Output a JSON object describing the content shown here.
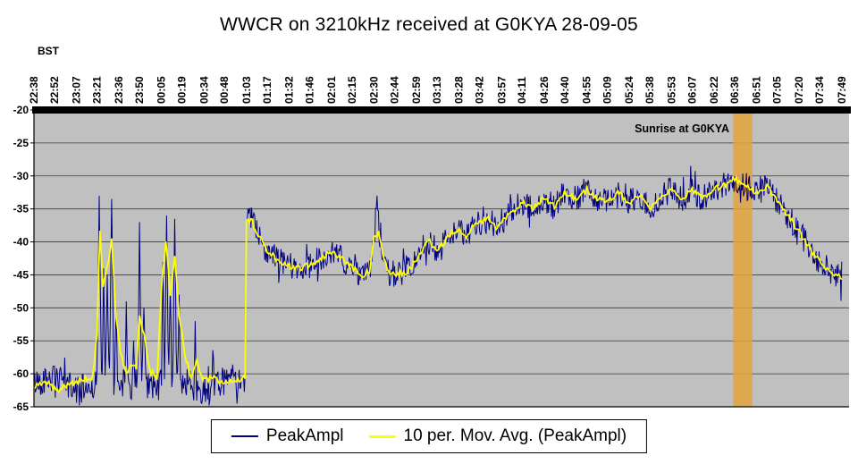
{
  "chart_data": {
    "type": "line",
    "title": "WWCR on 3210kHz received at G0KYA 28-09-05",
    "x_axis_label": "BST",
    "x_ticks": [
      "22:38",
      "22:52",
      "23:07",
      "23:21",
      "23:36",
      "23:50",
      "00:05",
      "00:19",
      "00:34",
      "00:48",
      "01:03",
      "01:17",
      "01:32",
      "01:46",
      "02:01",
      "02:15",
      "02:30",
      "02:44",
      "02:59",
      "03:13",
      "03:28",
      "03:42",
      "03:57",
      "04:11",
      "04:26",
      "04:40",
      "04:55",
      "05:09",
      "05:24",
      "05:38",
      "05:53",
      "06:07",
      "06:22",
      "06:36",
      "06:51",
      "07:05",
      "07:20",
      "07:34",
      "07:49"
    ],
    "y_ticks": [
      -20,
      -25,
      -30,
      -35,
      -40,
      -45,
      -50,
      -55,
      -60,
      -65
    ],
    "y_range": [
      -65,
      -20
    ],
    "x_range_minutes": [
      0,
      556
    ],
    "gridlines": true,
    "plot_bg": "#C0C0C0",
    "grid_color": "#3a3a3a",
    "annotation": {
      "label": "Sunrise at G0KYA",
      "band_start_min": 477,
      "band_end_min": 490,
      "band_color": "#E2A33C"
    },
    "series": [
      {
        "name": "PeakAmpl",
        "color": "#000080"
      },
      {
        "name": "10 per. Mov. Avg. (PeakAmpl)",
        "color": "#FFFF00"
      }
    ],
    "moving_avg_points": [
      [
        0,
        -62
      ],
      [
        8,
        -61
      ],
      [
        16,
        -62.5
      ],
      [
        24,
        -61.5
      ],
      [
        32,
        -61
      ],
      [
        40,
        -60.5
      ],
      [
        43,
        -54
      ],
      [
        45,
        -38
      ],
      [
        47,
        -47
      ],
      [
        50,
        -44
      ],
      [
        53,
        -39.5
      ],
      [
        56,
        -51
      ],
      [
        59,
        -57
      ],
      [
        63,
        -60
      ],
      [
        66,
        -58.5
      ],
      [
        70,
        -59
      ],
      [
        72,
        -51
      ],
      [
        75,
        -54
      ],
      [
        79,
        -59.5
      ],
      [
        84,
        -60.5
      ],
      [
        87,
        -47
      ],
      [
        90,
        -40
      ],
      [
        93,
        -48
      ],
      [
        96,
        -42.5
      ],
      [
        99,
        -51
      ],
      [
        103,
        -57
      ],
      [
        107,
        -60.5
      ],
      [
        111,
        -58
      ],
      [
        115,
        -61
      ],
      [
        122,
        -60.5
      ],
      [
        130,
        -61.5
      ],
      [
        138,
        -61
      ],
      [
        144,
        -60.5
      ],
      [
        145,
        -37
      ],
      [
        148,
        -36.5
      ],
      [
        152,
        -38.5
      ],
      [
        158,
        -41
      ],
      [
        165,
        -42.5
      ],
      [
        172,
        -43.5
      ],
      [
        180,
        -44
      ],
      [
        188,
        -43.5
      ],
      [
        196,
        -42.5
      ],
      [
        203,
        -41.5
      ],
      [
        210,
        -42.5
      ],
      [
        217,
        -44
      ],
      [
        224,
        -45
      ],
      [
        229,
        -44.5
      ],
      [
        232,
        -39.5
      ],
      [
        235,
        -38.5
      ],
      [
        238,
        -42
      ],
      [
        242,
        -44.5
      ],
      [
        248,
        -45
      ],
      [
        254,
        -44.5
      ],
      [
        261,
        -43
      ],
      [
        266,
        -40.5
      ],
      [
        270,
        -40
      ],
      [
        275,
        -41.5
      ],
      [
        280,
        -40
      ],
      [
        285,
        -38.5
      ],
      [
        290,
        -38
      ],
      [
        295,
        -39.5
      ],
      [
        300,
        -37.5
      ],
      [
        304,
        -37
      ],
      [
        310,
        -36.5
      ],
      [
        315,
        -38
      ],
      [
        319,
        -37
      ],
      [
        326,
        -35.5
      ],
      [
        333,
        -34
      ],
      [
        340,
        -35
      ],
      [
        348,
        -33.5
      ],
      [
        355,
        -34.5
      ],
      [
        362,
        -32.5
      ],
      [
        370,
        -33.5
      ],
      [
        377,
        -32
      ],
      [
        384,
        -33.5
      ],
      [
        391,
        -34
      ],
      [
        398,
        -32.5
      ],
      [
        406,
        -34
      ],
      [
        413,
        -33
      ],
      [
        420,
        -35
      ],
      [
        427,
        -33.5
      ],
      [
        435,
        -32
      ],
      [
        442,
        -33.5
      ],
      [
        449,
        -32
      ],
      [
        456,
        -33.5
      ],
      [
        464,
        -32
      ],
      [
        470,
        -31.5
      ],
      [
        478,
        -30.5
      ],
      [
        486,
        -31.5
      ],
      [
        493,
        -32.5
      ],
      [
        500,
        -31.5
      ],
      [
        507,
        -34
      ],
      [
        514,
        -36
      ],
      [
        522,
        -38.5
      ],
      [
        529,
        -41
      ],
      [
        536,
        -43
      ],
      [
        543,
        -44.5
      ],
      [
        551,
        -45.5
      ]
    ],
    "spikes": [
      [
        44.5,
        -33,
        1.5
      ],
      [
        47.5,
        -44,
        1
      ],
      [
        50,
        -45,
        1.2
      ],
      [
        53,
        -33.5,
        1.5
      ],
      [
        56,
        -50,
        1
      ],
      [
        63,
        -49,
        0.8
      ],
      [
        68,
        -55,
        1
      ],
      [
        72,
        -37,
        1.2
      ],
      [
        75,
        -50,
        1.5
      ],
      [
        88,
        -43,
        1
      ],
      [
        90.5,
        -36,
        1.3
      ],
      [
        93,
        -47,
        1
      ],
      [
        96,
        -36.5,
        1.3
      ],
      [
        99,
        -48,
        1
      ],
      [
        110,
        -52,
        0.8
      ],
      [
        146,
        -35.5,
        1
      ],
      [
        234,
        -33,
        1.5
      ]
    ],
    "noise": {
      "early_region_end_min": 144.5,
      "early_base": -61.5,
      "early_amp": 2.2,
      "late_amp": 2.0,
      "seed": 42
    }
  }
}
